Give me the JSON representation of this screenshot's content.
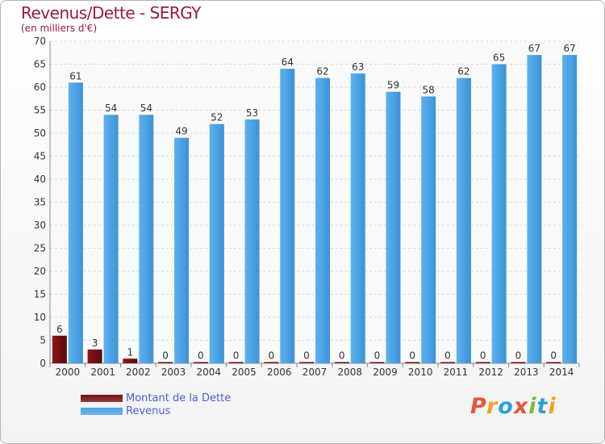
{
  "chart_data": {
    "type": "bar",
    "title": "Revenus/Dette - SERGY",
    "subtitle": "(en milliers d'€)",
    "categories": [
      "2000",
      "2001",
      "2002",
      "2003",
      "2004",
      "2005",
      "2006",
      "2007",
      "2008",
      "2009",
      "2010",
      "2011",
      "2012",
      "2013",
      "2014"
    ],
    "series": [
      {
        "name": "Montant de la Dette",
        "color": "#7a0f12",
        "values": [
          6,
          3,
          1,
          0,
          0,
          0,
          0,
          0,
          0,
          0,
          0,
          0,
          0,
          0,
          0
        ]
      },
      {
        "name": "Revenus",
        "color": "#4da3e6",
        "values": [
          61,
          54,
          54,
          49,
          52,
          53,
          64,
          62,
          63,
          59,
          58,
          62,
          65,
          67,
          67
        ]
      }
    ],
    "ylim": [
      0,
      70
    ],
    "yticks": [
      0,
      5,
      10,
      15,
      20,
      25,
      30,
      35,
      40,
      45,
      50,
      55,
      60,
      65,
      70
    ],
    "grid": true,
    "xlabel": "",
    "ylabel": ""
  },
  "legend": {
    "items": [
      {
        "label": "Montant de la Dette",
        "color": "#7a0f12"
      },
      {
        "label": "Revenus",
        "color": "#4da3e6"
      }
    ]
  },
  "brand": {
    "letters": [
      {
        "ch": "P",
        "color": "#e8543a"
      },
      {
        "ch": "r",
        "color": "#f3a21c"
      },
      {
        "ch": "o",
        "color": "#2f9fd8"
      },
      {
        "ch": "x",
        "color": "#e8543a"
      },
      {
        "ch": "i",
        "color": "#7dbb34"
      },
      {
        "ch": "t",
        "color": "#2f9fd8"
      },
      {
        "ch": "i",
        "color": "#f3a21c"
      }
    ]
  }
}
